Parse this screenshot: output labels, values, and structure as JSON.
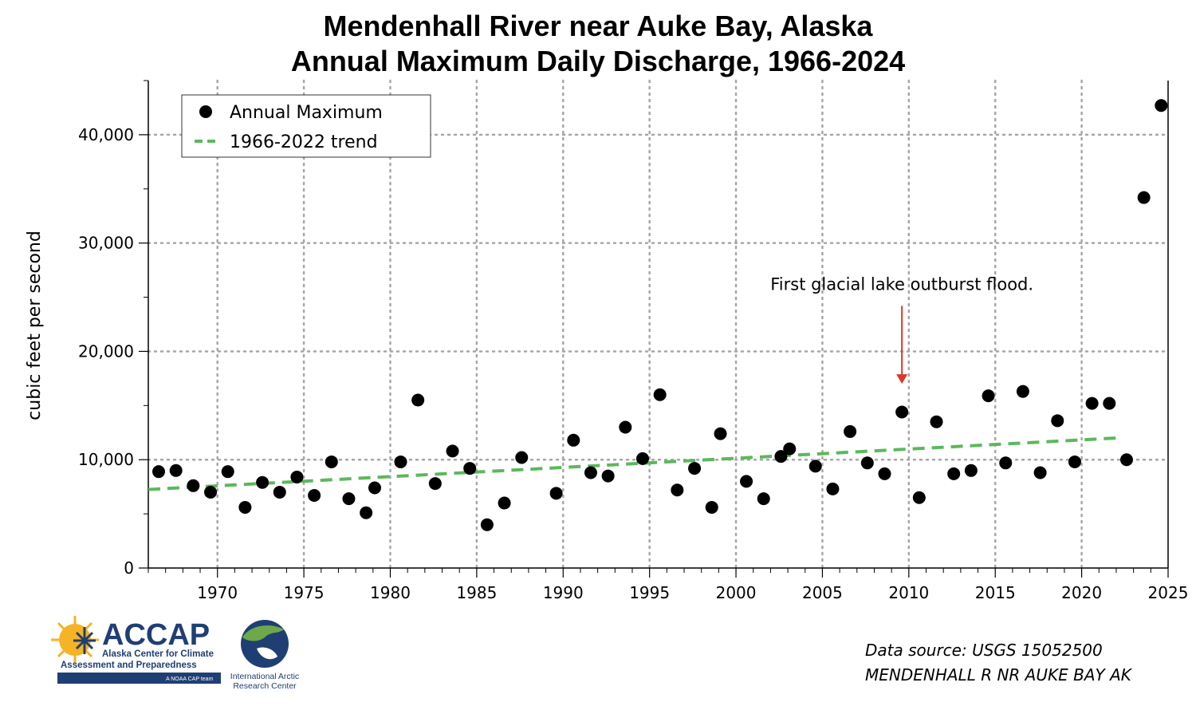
{
  "chart_data": {
    "type": "scatter",
    "title": "Mendenhall River near Auke Bay, Alaska",
    "subtitle": "Annual Maximum Daily Discharge, 1966-2024",
    "xlabel": "",
    "ylabel": "cubic feet per second",
    "xlim": [
      1966,
      2025
    ],
    "ylim": [
      0,
      45000
    ],
    "x_ticks": [
      1970,
      1975,
      1980,
      1985,
      1990,
      1995,
      2000,
      2005,
      2010,
      2015,
      2020,
      2025
    ],
    "y_ticks": [
      0,
      10000,
      20000,
      30000,
      40000
    ],
    "y_tick_labels": [
      "0",
      "10,000",
      "20,000",
      "30,000",
      "40,000"
    ],
    "grid": true,
    "legend_position": "top-left",
    "series": [
      {
        "name": "Annual Maximum",
        "kind": "points",
        "color": "#000000",
        "x": [
          1966,
          1967,
          1968,
          1969,
          1970,
          1971,
          1972,
          1973,
          1974,
          1975,
          1976,
          1977,
          1978,
          1978.5,
          1980,
          1981,
          1982,
          1983,
          1984,
          1985,
          1986,
          1987,
          1989,
          1990,
          1991,
          1992,
          1993,
          1994,
          1995,
          1996,
          1997,
          1998,
          1998.5,
          2000,
          2001,
          2002,
          2002.5,
          2004,
          2005,
          2006,
          2007,
          2008,
          2009,
          2010,
          2011,
          2012,
          2013,
          2014,
          2015,
          2016,
          2017,
          2018,
          2019,
          2020,
          2021,
          2022,
          2023,
          2024
        ],
        "values": [
          8900,
          9000,
          7600,
          7000,
          8900,
          5600,
          7900,
          7000,
          8400,
          6700,
          9800,
          6400,
          5100,
          7400,
          9800,
          15500,
          7800,
          10800,
          9200,
          4000,
          6000,
          10200,
          6900,
          11800,
          8800,
          8500,
          13000,
          10100,
          16000,
          7200,
          9200,
          5600,
          12400,
          8000,
          6400,
          10300,
          11000,
          9400,
          7300,
          12600,
          9700,
          8700,
          14400,
          6500,
          13500,
          8700,
          9000,
          15900,
          9700,
          16300,
          8800,
          13600,
          9800,
          15200,
          15200,
          10000,
          34200,
          42700
        ]
      },
      {
        "name": "1966-2022 trend",
        "kind": "line",
        "style": "dashed",
        "color": "#5cb85c",
        "x": [
          1966,
          2022
        ],
        "values": [
          7250,
          12000
        ]
      }
    ],
    "annotations": [
      {
        "text": "First glacial lake outburst flood.",
        "arrow_to_x": 2009.6,
        "arrow_to_y": 17000,
        "arrow_from_y": 24200,
        "color": "#e0362c"
      }
    ]
  },
  "legend": {
    "items": [
      {
        "label": "Annual Maximum"
      },
      {
        "label": "1966-2022 trend"
      }
    ]
  },
  "source": {
    "line1": "Data source: USGS 15052500",
    "line2": "MENDENHALL R  NR AUKE BAY AK"
  },
  "logos": {
    "accap_name": "ACCAP",
    "accap_line1": "Alaska Center for Climate",
    "accap_line2": "Assessment and Preparedness",
    "accap_tag": "A NOAA CAP team",
    "iarc_line1": "International Arctic",
    "iarc_line2": "Research Center"
  },
  "colors": {
    "accap_blue": "#1f3f74",
    "sun_yellow": "#f5b325",
    "trend_green": "#5cb85c",
    "annotation_red": "#e0362c"
  }
}
